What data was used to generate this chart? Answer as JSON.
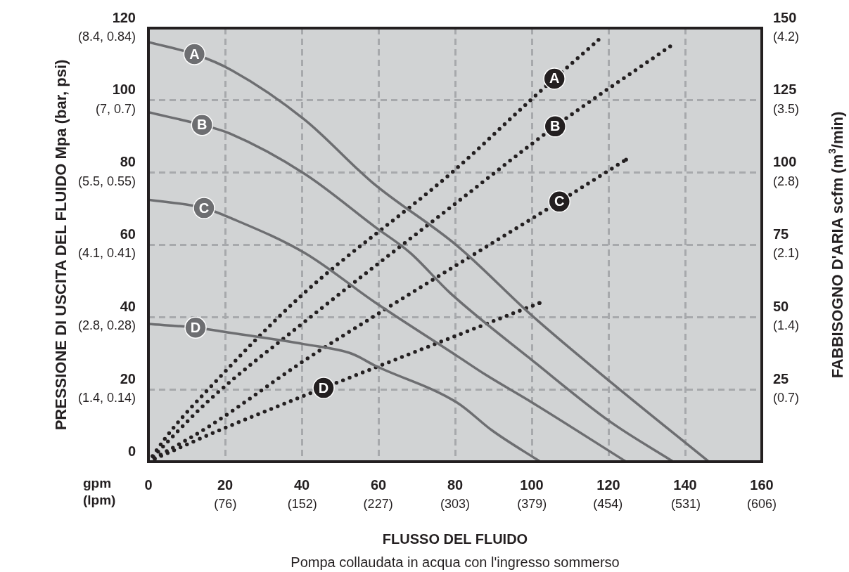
{
  "chart_data": {
    "type": "line",
    "xlabel": "FLUSSO DEL FLUIDO",
    "ylabel": "PRESSIONE DI USCITA DEL FLUIDO Mpa (bar, psi)",
    "y2label": "FABBISOGNO D'ARIA scfm (m$^{3}$/min)",
    "annotations": [
      "gpm\n(lpm)",
      "Pompa collaudata in acqua con l'ingresso sommerso",
      "(1.4, 0.14)",
      "(2.8, 0.28)",
      "(4.1, 0.41)",
      "(5.5, 0.55)",
      "(7, 0.7)",
      "(8.4, 0.84)"
    ],
    "xlim": [
      0,
      160
    ],
    "ylim": [
      0,
      120
    ],
    "y2lim": [
      0,
      150
    ],
    "xticks": [
      0,
      20,
      40,
      60,
      80,
      100,
      120,
      140,
      160
    ],
    "yticks": [
      0,
      20,
      40,
      60,
      80,
      100,
      120
    ],
    "y2ticks": [
      25,
      50,
      75,
      100,
      125,
      150
    ],
    "x2lim": [
      0,
      606
    ],
    "x2ticks": [
      {
        "value": 76,
        "label": "(76)"
      },
      {
        "value": 152,
        "label": "(152)"
      },
      {
        "value": 227,
        "label": "(227)"
      },
      {
        "value": 303,
        "label": "(303)"
      },
      {
        "value": 379,
        "label": "(379)"
      },
      {
        "value": 454,
        "label": "(454)"
      },
      {
        "value": 531,
        "label": "(531)"
      },
      {
        "value": 606,
        "label": "(606)"
      }
    ],
    "y3lim": [
      0,
      4.2
    ],
    "y3ticks": [
      {
        "value": 0.7,
        "label": "(0.7)"
      },
      {
        "value": 1.4,
        "label": "(1.4)"
      },
      {
        "value": 2.1,
        "label": "(2.1)"
      },
      {
        "value": 2.8,
        "label": "(2.8)"
      },
      {
        "value": 3.5,
        "label": "(3.5)"
      },
      {
        "value": 4.2,
        "label": "(4.2)"
      }
    ],
    "grid": true,
    "marker": "none",
    "series": [
      {
        "name": "A",
        "color": "#6d6e71",
        "line_style": "solid",
        "x": [
          0,
          12,
          21.8,
          40.7,
          58.5,
          80.6,
          100.2,
          120.4,
          146.2
        ],
        "values": [
          116.1,
          112.8,
          108.3,
          94.7,
          77.2,
          59.7,
          40.3,
          22.2,
          0
        ]
      },
      {
        "name": "B",
        "color": "#6d6e71",
        "line_style": "solid",
        "x": [
          0,
          14,
          21.3,
          40.7,
          59.1,
          68.3,
          78.7,
          100.2,
          120.4,
          136.9
        ],
        "values": [
          96.7,
          93.2,
          90.8,
          79.7,
          65,
          57.8,
          46.7,
          28,
          11.1,
          0
        ]
      },
      {
        "name": "C",
        "color": "#6d6e71",
        "line_style": "solid",
        "x": [
          0,
          14.5,
          21.3,
          40.7,
          59.1,
          80.6,
          87.9,
          100.2,
          124.6
        ],
        "values": [
          72.5,
          70.2,
          67.5,
          57.8,
          44.1,
          29.2,
          24.1,
          16.3,
          0
        ]
      },
      {
        "name": "D",
        "color": "#6d6e71",
        "line_style": "solid",
        "x": [
          0,
          12.3,
          20.6,
          40.7,
          53,
          59.1,
          80.6,
          89.7,
          102.2
        ],
        "values": [
          38.1,
          37.1,
          35.8,
          32.5,
          29.9,
          26.6,
          16.3,
          8.6,
          0
        ]
      },
      {
        "name": "A",
        "color": "#231f20",
        "line_style": "dotted",
        "axis": "y2",
        "x": [
          0,
          5.9,
          15.8,
          39.6,
          79.3,
          100.2,
          105.9,
          117.4
        ],
        "values": [
          0,
          10.7,
          25.3,
          57.1,
          100.2,
          125.7,
          132.5,
          145.9
        ]
      },
      {
        "name": "B",
        "color": "#231f20",
        "line_style": "dotted",
        "axis": "y2",
        "x": [
          0,
          15.8,
          39.6,
          79.3,
          106.1,
          136.1
        ],
        "values": [
          0,
          21.2,
          47.2,
          88.5,
          116,
          143.7
        ]
      },
      {
        "name": "C",
        "color": "#231f20",
        "line_style": "dotted",
        "axis": "y2",
        "x": [
          0,
          15.8,
          40.7,
          59.8,
          107.2,
          124.6
        ],
        "values": [
          0,
          12.2,
          35,
          51.1,
          90,
          104.5
        ]
      },
      {
        "name": "D",
        "color": "#231f20",
        "line_style": "dotted",
        "axis": "y2",
        "x": [
          0,
          18.2,
          38.9,
          45.7,
          102
        ],
        "values": [
          0,
          10.7,
          21.9,
          25.5,
          54.9
        ]
      }
    ]
  }
}
